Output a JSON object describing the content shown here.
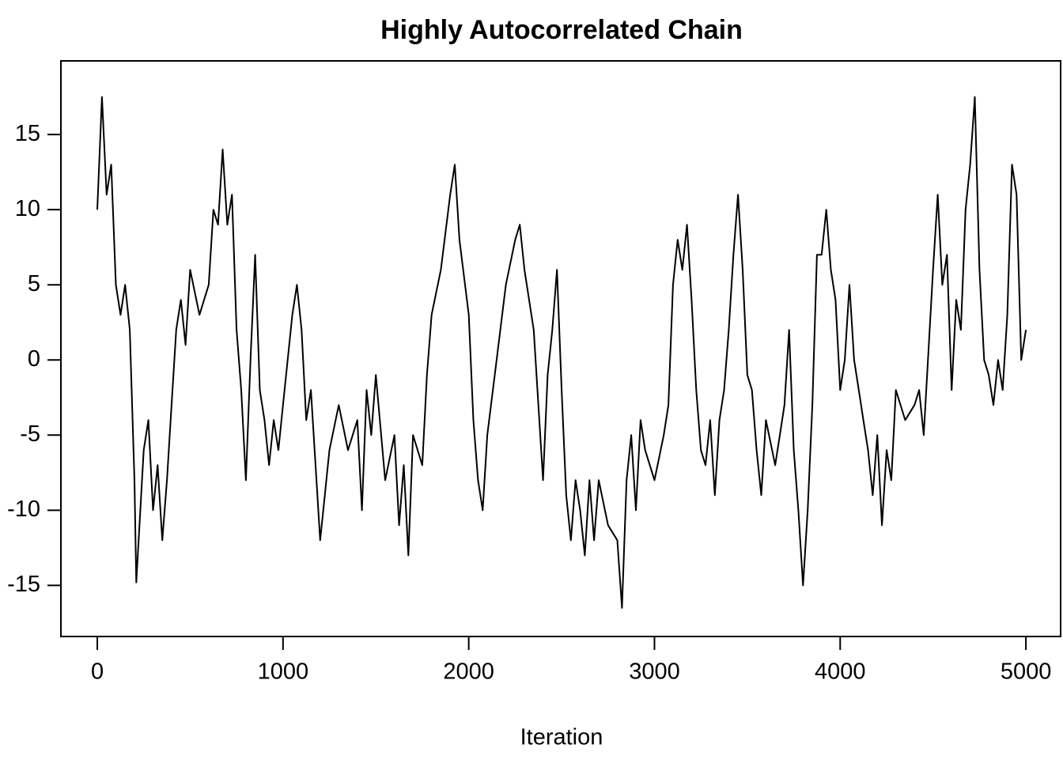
{
  "chart_data": {
    "type": "line",
    "title": "Highly Autocorrelated Chain",
    "x_label": "Iteration",
    "x": [
      0,
      25,
      50,
      75,
      100,
      125,
      150,
      175,
      200,
      210,
      250,
      275,
      300,
      325,
      350,
      375,
      400,
      425,
      450,
      475,
      500,
      550,
      600,
      625,
      650,
      675,
      700,
      725,
      750,
      775,
      800,
      825,
      850,
      875,
      900,
      925,
      950,
      975,
      1000,
      1050,
      1075,
      1100,
      1125,
      1150,
      1200,
      1225,
      1250,
      1300,
      1350,
      1400,
      1425,
      1450,
      1475,
      1500,
      1550,
      1600,
      1625,
      1650,
      1675,
      1700,
      1750,
      1775,
      1800,
      1850,
      1900,
      1925,
      1950,
      2000,
      2025,
      2050,
      2075,
      2100,
      2150,
      2200,
      2250,
      2275,
      2300,
      2350,
      2375,
      2400,
      2425,
      2450,
      2475,
      2500,
      2525,
      2550,
      2575,
      2600,
      2625,
      2650,
      2675,
      2700,
      2750,
      2800,
      2825,
      2850,
      2875,
      2900,
      2925,
      2950,
      3000,
      3050,
      3075,
      3100,
      3125,
      3150,
      3175,
      3200,
      3225,
      3250,
      3275,
      3300,
      3325,
      3350,
      3375,
      3400,
      3425,
      3450,
      3475,
      3500,
      3525,
      3550,
      3575,
      3600,
      3650,
      3675,
      3700,
      3725,
      3750,
      3775,
      3800,
      3825,
      3850,
      3875,
      3900,
      3925,
      3950,
      3975,
      4000,
      4025,
      4050,
      4075,
      4100,
      4125,
      4150,
      4175,
      4200,
      4225,
      4250,
      4275,
      4300,
      4350,
      4400,
      4425,
      4450,
      4500,
      4525,
      4550,
      4575,
      4600,
      4625,
      4650,
      4675,
      4700,
      4725,
      4750,
      4775,
      4800,
      4825,
      4850,
      4875,
      4900,
      4925,
      4950,
      4975,
      5000
    ],
    "series": [
      {
        "color": "#000000",
        "values": [
          10,
          17.5,
          11,
          13,
          5,
          3,
          5,
          2,
          -8,
          -14.8,
          -6,
          -4,
          -10,
          -7,
          -12,
          -8,
          -3,
          2,
          4,
          1,
          6,
          3,
          5,
          10,
          9,
          14,
          9,
          11,
          2,
          -2,
          -8,
          0,
          7,
          -2,
          -4,
          -7,
          -4,
          -6,
          -3,
          3,
          5,
          2,
          -4,
          -2,
          -12,
          -9,
          -6,
          -3,
          -6,
          -4,
          -10,
          -2,
          -5,
          -1,
          -8,
          -5,
          -11,
          -7,
          -13,
          -5,
          -7,
          -1,
          3,
          6,
          11,
          13,
          8,
          3,
          -4,
          -8,
          -10,
          -5,
          0,
          5,
          8,
          9,
          6,
          2,
          -3,
          -8,
          -1,
          2,
          6,
          -2,
          -9,
          -12,
          -8,
          -10,
          -13,
          -8,
          -12,
          -8,
          -11,
          -12,
          -16.5,
          -8,
          -5,
          -10,
          -4,
          -6,
          -8,
          -5,
          -3,
          5,
          8,
          6,
          9,
          4,
          -2,
          -6,
          -7,
          -4,
          -9,
          -4,
          -2,
          2,
          7,
          11,
          6,
          -1,
          -2,
          -6,
          -9,
          -4,
          -7,
          -5,
          -3,
          2,
          -6,
          -10,
          -15,
          -10,
          -3,
          7,
          7,
          10,
          6,
          4,
          -2,
          0,
          5,
          0,
          -2,
          -4,
          -6,
          -9,
          -5,
          -11,
          -6,
          -8,
          -2,
          -4,
          -3,
          -2,
          -5,
          6,
          11,
          5,
          7,
          -2,
          4,
          2,
          10,
          13,
          17.5,
          6,
          0,
          -1,
          -3,
          0,
          -2,
          3,
          13,
          11,
          0,
          2
        ]
      }
    ],
    "xlim": [
      -196,
      5187
    ],
    "ylim": [
      -18.4,
      19.9
    ],
    "xticks": [
      0,
      1000,
      2000,
      3000,
      4000,
      5000
    ],
    "yticks": [
      -15,
      -10,
      -5,
      0,
      5,
      10,
      15
    ]
  }
}
